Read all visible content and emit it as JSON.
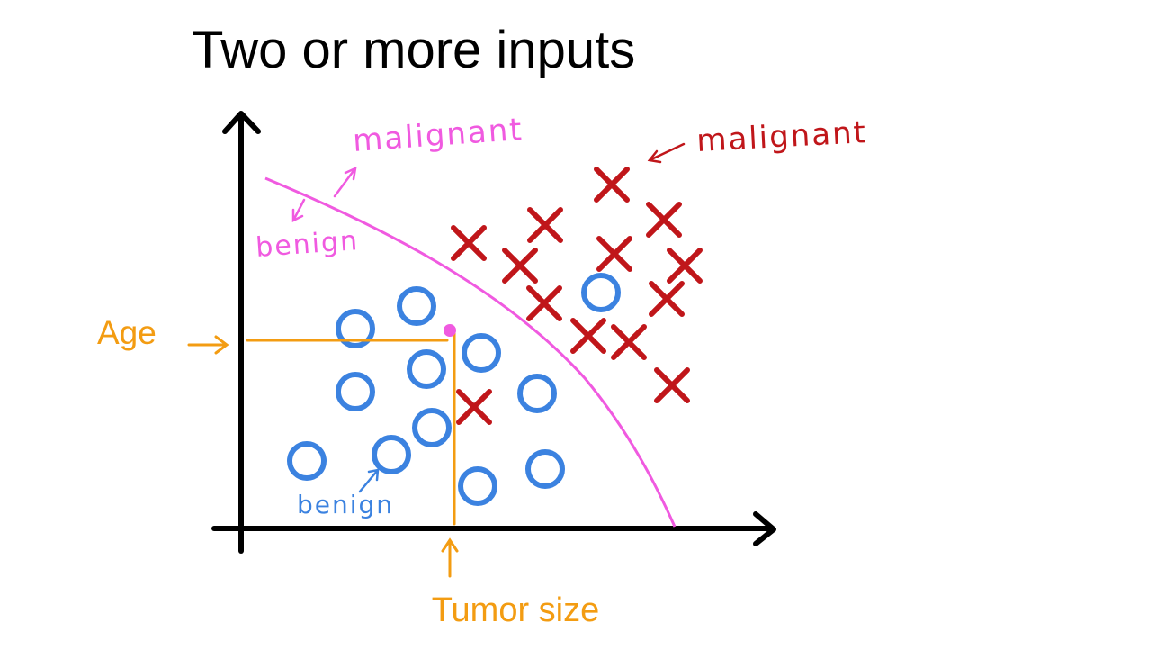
{
  "title": "Two or more inputs",
  "labels": {
    "boundary_malignant": "malignant",
    "boundary_benign": "benign",
    "malignant": "malignant",
    "benign": "benign",
    "y_axis": "Age",
    "x_axis": "Tumor size"
  }
}
